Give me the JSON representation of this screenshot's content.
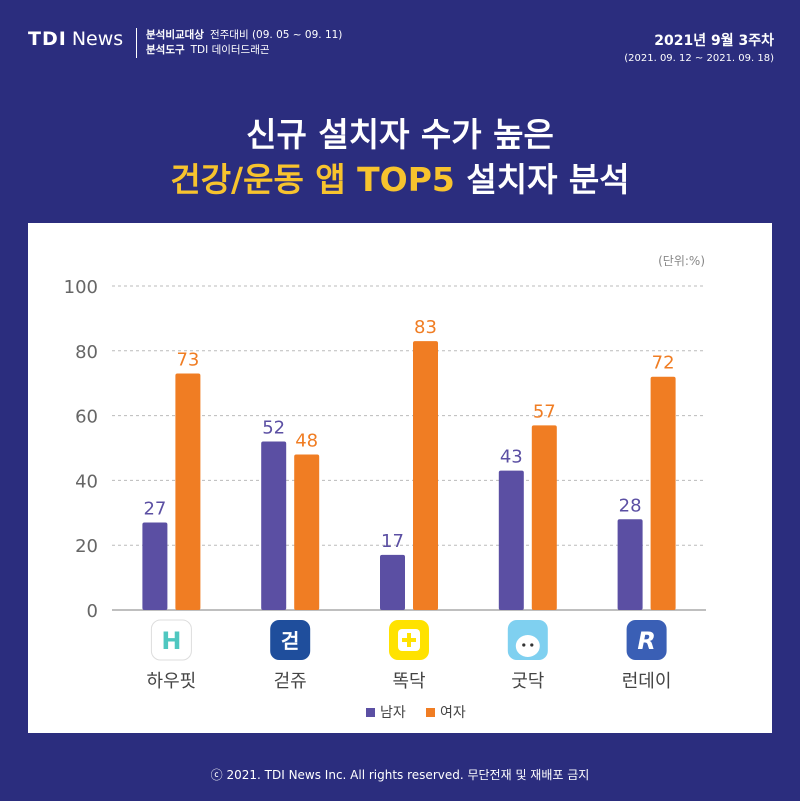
{
  "header": {
    "logo_mark": "TDI",
    "logo_news": "News",
    "compare_label": "분석비교대상",
    "compare_value": "전주대비 (09. 05 ~ 09. 11)",
    "tool_label": "분석도구",
    "tool_value": "TDI 데이터드래곤",
    "week_title": "2021년 9월 3주차",
    "week_range": "(2021. 09. 12 ~ 2021. 09. 18)"
  },
  "title": {
    "line1": "신규 설치자 수가 높은",
    "line2_highlight": "건강/운동 앱 TOP5",
    "line2_rest": " 설치자 분석"
  },
  "chart_data": {
    "type": "bar",
    "unit_label": "(단위:%)",
    "categories": [
      "하우핏",
      "걷쥬",
      "똑닥",
      "굿닥",
      "런데이"
    ],
    "series": [
      {
        "name": "남자",
        "color": "#5b4fa3",
        "values": [
          27,
          52,
          17,
          43,
          28
        ]
      },
      {
        "name": "여자",
        "color": "#f07d23",
        "values": [
          73,
          48,
          83,
          57,
          72
        ]
      }
    ],
    "ylim": [
      0,
      100
    ],
    "yticks": [
      0,
      20,
      40,
      60,
      80,
      100
    ],
    "legend_position": "bottom",
    "grid": true
  },
  "icons": [
    "howfit-app-icon",
    "geotjyu-app-icon",
    "ddoktak-app-icon",
    "goodoc-app-icon",
    "runday-app-icon"
  ],
  "footer": "ⓒ 2021. TDI News Inc. All rights reserved. 무단전재 및 재배포 금지"
}
